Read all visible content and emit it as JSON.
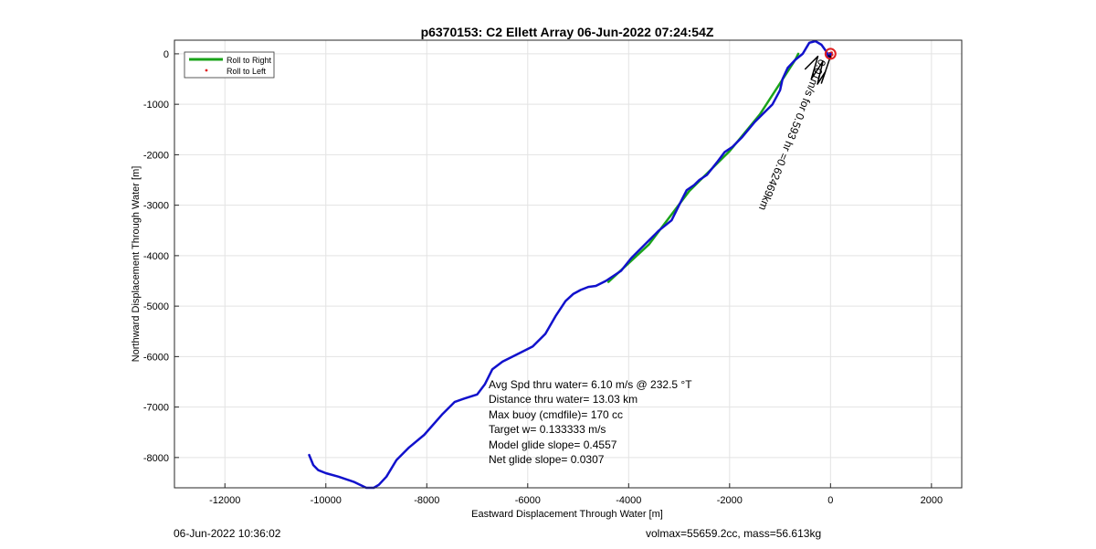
{
  "chart_data": {
    "type": "line",
    "title": "p6370153: C2 Ellett Array 06-Jun-2022 07:24:54Z",
    "xlabel": "Eastward Displacement Through Water [m]",
    "ylabel": "Northward Displacement Through Water [m]",
    "xlim": [
      -13000,
      2600
    ],
    "ylim": [
      -8600,
      270
    ],
    "xticks": [
      -12000,
      -10000,
      -8000,
      -6000,
      -4000,
      -2000,
      0,
      2000
    ],
    "yticks": [
      0,
      -1000,
      -2000,
      -3000,
      -4000,
      -5000,
      -6000,
      -7000,
      -8000
    ],
    "grid": true,
    "legend": {
      "placement": "top-left",
      "entries": [
        "Roll to Right",
        "Roll to Left"
      ]
    },
    "series": [
      {
        "name": "Roll to Right",
        "color": "#1aa31a",
        "x": [
          -4400,
          -3600,
          -2800,
          -2000,
          -1400,
          -700,
          -640
        ],
        "y": [
          -4520,
          -3780,
          -2720,
          -1930,
          -1200,
          -120,
          0
        ]
      },
      {
        "name": "Roll to Left",
        "color": "#e02020",
        "x": [
          -40,
          -20,
          0,
          20,
          30
        ],
        "y": [
          -40,
          10,
          -60,
          20,
          -20
        ]
      },
      {
        "name": "",
        "color": "#1111cc",
        "x": [
          -10330,
          -10250,
          -10150,
          -10000,
          -9750,
          -9450,
          -9200,
          -9050,
          -8950,
          -8800,
          -8600,
          -8350,
          -8050,
          -7700,
          -7450,
          -7250,
          -7000,
          -6850,
          -6700,
          -6500,
          -6200,
          -5900,
          -5650,
          -5450,
          -5250,
          -5100,
          -4950,
          -4800,
          -4650,
          -4450,
          -4150,
          -3950,
          -3650,
          -3400,
          -3150,
          -2950,
          -2850,
          -2700,
          -2600,
          -2450,
          -2250,
          -2100,
          -1950,
          -1750,
          -1500,
          -1150,
          -1000,
          -950,
          -850,
          -700,
          -550,
          -420,
          -300,
          -180,
          -80,
          -30,
          0
        ],
        "y": [
          -7950,
          -8150,
          -8250,
          -8310,
          -8380,
          -8480,
          -8600,
          -8600,
          -8540,
          -8380,
          -8050,
          -7800,
          -7550,
          -7150,
          -6900,
          -6830,
          -6750,
          -6550,
          -6250,
          -6100,
          -5950,
          -5800,
          -5550,
          -5200,
          -4900,
          -4760,
          -4680,
          -4620,
          -4600,
          -4500,
          -4300,
          -4050,
          -3750,
          -3500,
          -3300,
          -2900,
          -2700,
          -2600,
          -2500,
          -2400,
          -2150,
          -1950,
          -1850,
          -1650,
          -1350,
          -1000,
          -720,
          -500,
          -280,
          -120,
          0,
          220,
          250,
          180,
          40,
          -80,
          0
        ]
      },
      {
        "name": "",
        "color": "#000000",
        "x": [
          -500,
          -250,
          -380,
          -150,
          -260,
          -100,
          -180,
          0,
          -40
        ],
        "y": [
          -300,
          -50,
          -500,
          -150,
          -600,
          -350,
          -580,
          -50,
          -40
        ]
      }
    ],
    "marker": {
      "x": 0,
      "y": 0,
      "color": "#e02020"
    },
    "annotations": [
      "Avg Spd thru water=  6.10 m/s @ 232.5 °T",
      "Distance thru water= 13.03 km",
      "Max buoy (cmdfile)= 170 cc",
      "Target w= 0.133333 m/s",
      "Model glide slope= 0.4557",
      "Net glide slope= 0.0307"
    ],
    "rotated_annotation": "0.01m/s for 0.593 hr =0.62469km",
    "footer_left": "06-Jun-2022 10:36:02",
    "footer_right": "volmax=55659.2cc, mass=56.613kg"
  }
}
